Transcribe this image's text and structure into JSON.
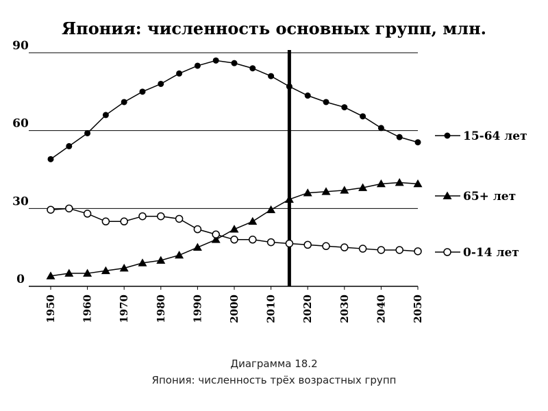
{
  "chart_data": {
    "type": "line",
    "title": "Япония: численность основных групп, млн.",
    "x": [
      1950,
      1955,
      1960,
      1965,
      1970,
      1975,
      1980,
      1985,
      1990,
      1995,
      2000,
      2005,
      2010,
      2015,
      2020,
      2025,
      2030,
      2035,
      2040,
      2045,
      2050
    ],
    "x_tick_labels": [
      "1950",
      "1960",
      "1970",
      "1980",
      "1990",
      "2000",
      "2010",
      "2020",
      "2030",
      "2040",
      "2050"
    ],
    "y_tick_labels": [
      "0",
      "30",
      "60",
      "90"
    ],
    "xlim": [
      1950,
      2050
    ],
    "ylim": [
      0,
      90
    ],
    "gridlines_y": [
      30,
      60,
      90
    ],
    "vertical_marker_x": 2015,
    "legend_position": "right",
    "series": [
      {
        "name": "15-64 лет",
        "marker": "filled-circle",
        "values": [
          49,
          54,
          59,
          66,
          71,
          75,
          78,
          82,
          85,
          87,
          86,
          84,
          81,
          77,
          73.5,
          71,
          69,
          65.5,
          61,
          57.5,
          55.5
        ]
      },
      {
        "name": "65+ лет",
        "marker": "filled-triangle",
        "values": [
          4,
          5,
          5,
          6,
          7,
          9,
          10,
          12,
          15,
          18,
          22,
          25,
          29.5,
          33.5,
          36,
          36.5,
          37,
          38,
          39.5,
          40,
          39.5
        ]
      },
      {
        "name": "0-14 лет",
        "marker": "open-circle",
        "values": [
          29.5,
          30,
          28,
          25,
          25,
          27,
          27,
          26,
          22,
          20,
          18,
          18,
          17,
          16.5,
          16,
          15.5,
          15,
          14.5,
          14,
          14,
          13.5
        ]
      }
    ]
  },
  "caption": {
    "line1": "Диаграмма 18.2",
    "line2": "Япония: численность трёх возрастных групп"
  }
}
